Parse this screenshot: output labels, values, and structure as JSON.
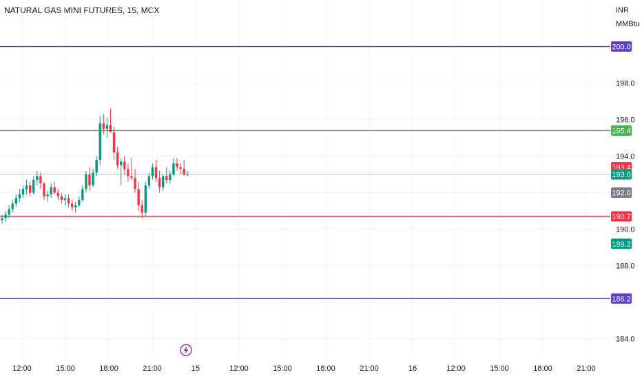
{
  "chart_data": {
    "type": "candlestick",
    "title": "NATURAL GAS MINI FUTURES, 15, MCX",
    "units": [
      "INR",
      "MMBtu"
    ],
    "y_axis": {
      "range": [
        183.0,
        202.5
      ],
      "ticks": [
        "184.0",
        "188.0",
        "190.0",
        "194.0",
        "196.0",
        "198.0"
      ]
    },
    "x_axis": {
      "ticks": [
        "12:00",
        "15:00",
        "18:00",
        "21:00",
        "15",
        "12:00",
        "15:00",
        "18:00",
        "21:00",
        "16",
        "12:00",
        "15:00",
        "18:00",
        "21:00"
      ]
    },
    "horizontal_levels": [
      {
        "value": 200.0,
        "label": "200.0",
        "color": "#5b3fc4"
      },
      {
        "value": 195.4,
        "label": "195.4",
        "color": "#4caf50"
      },
      {
        "value": 190.7,
        "label": "190.7",
        "color": "#f23645"
      },
      {
        "value": 186.2,
        "label": "186.2",
        "color": "#5b3fc4"
      }
    ],
    "price_tags": [
      {
        "value": 193.4,
        "label": "193.4",
        "color": "#f23645"
      },
      {
        "value": 193.0,
        "label": "193.0",
        "color": "#089981"
      },
      {
        "value": 192.0,
        "label": "192.0",
        "color": "#787b86"
      },
      {
        "value": 189.2,
        "label": "189.2",
        "color": "#089981"
      }
    ],
    "last_price": 193.0,
    "candles": [
      [
        190.5,
        190.8,
        190.3,
        190.6
      ],
      [
        190.6,
        191.0,
        190.4,
        190.8
      ],
      [
        190.8,
        191.3,
        190.6,
        191.1
      ],
      [
        191.1,
        191.6,
        190.9,
        191.4
      ],
      [
        191.4,
        191.9,
        191.2,
        191.7
      ],
      [
        191.7,
        192.2,
        191.5,
        191.9
      ],
      [
        191.9,
        192.4,
        191.7,
        192.2
      ],
      [
        192.2,
        192.7,
        191.9,
        192.4
      ],
      [
        192.4,
        192.6,
        191.8,
        192.0
      ],
      [
        192.0,
        192.9,
        191.9,
        192.7
      ],
      [
        192.7,
        193.2,
        192.4,
        192.9
      ],
      [
        192.9,
        193.1,
        192.2,
        192.5
      ],
      [
        192.5,
        192.6,
        191.6,
        191.8
      ],
      [
        191.8,
        192.1,
        191.5,
        191.9
      ],
      [
        191.9,
        192.5,
        191.7,
        192.3
      ],
      [
        192.3,
        192.6,
        191.9,
        192.0
      ],
      [
        192.0,
        192.2,
        191.6,
        191.8
      ],
      [
        191.8,
        192.0,
        191.4,
        191.6
      ],
      [
        191.6,
        191.9,
        191.3,
        191.7
      ],
      [
        191.7,
        191.9,
        191.2,
        191.4
      ],
      [
        191.4,
        191.6,
        191.0,
        191.2
      ],
      [
        191.2,
        191.5,
        190.9,
        191.3
      ],
      [
        191.3,
        191.8,
        191.2,
        191.6
      ],
      [
        191.6,
        192.4,
        191.5,
        192.2
      ],
      [
        192.2,
        193.2,
        192.0,
        193.0
      ],
      [
        193.0,
        193.4,
        192.1,
        192.4
      ],
      [
        192.4,
        193.3,
        192.3,
        193.1
      ],
      [
        193.1,
        194.0,
        192.9,
        193.8
      ],
      [
        193.8,
        196.2,
        193.5,
        195.8
      ],
      [
        195.8,
        196.3,
        195.2,
        195.5
      ],
      [
        195.5,
        196.1,
        195.0,
        195.7
      ],
      [
        195.7,
        196.6,
        195.4,
        195.3
      ],
      [
        195.3,
        195.6,
        193.8,
        194.2
      ],
      [
        194.2,
        194.5,
        193.3,
        193.5
      ],
      [
        193.5,
        193.9,
        192.4,
        193.7
      ],
      [
        193.7,
        194.0,
        193.0,
        193.3
      ],
      [
        193.3,
        193.6,
        192.6,
        192.9
      ],
      [
        192.9,
        193.9,
        192.7,
        192.8
      ],
      [
        192.8,
        193.3,
        192.0,
        192.2
      ],
      [
        192.2,
        192.6,
        191.0,
        191.3
      ],
      [
        191.3,
        191.6,
        190.6,
        190.9
      ],
      [
        190.9,
        192.6,
        190.7,
        192.4
      ],
      [
        192.4,
        193.1,
        192.2,
        192.9
      ],
      [
        192.9,
        193.6,
        192.7,
        193.4
      ],
      [
        193.4,
        193.8,
        192.6,
        192.8
      ],
      [
        192.8,
        193.2,
        192.0,
        192.3
      ],
      [
        192.3,
        193.0,
        192.1,
        192.9
      ],
      [
        192.9,
        193.4,
        192.5,
        192.7
      ],
      [
        192.7,
        193.2,
        192.5,
        193.0
      ],
      [
        193.0,
        193.9,
        192.9,
        193.6
      ],
      [
        193.6,
        193.9,
        193.2,
        193.4
      ],
      [
        193.4,
        193.6,
        193.0,
        193.3
      ],
      [
        193.3,
        193.8,
        192.9,
        193.0
      ],
      [
        193.0,
        193.2,
        192.9,
        193.0
      ]
    ]
  }
}
